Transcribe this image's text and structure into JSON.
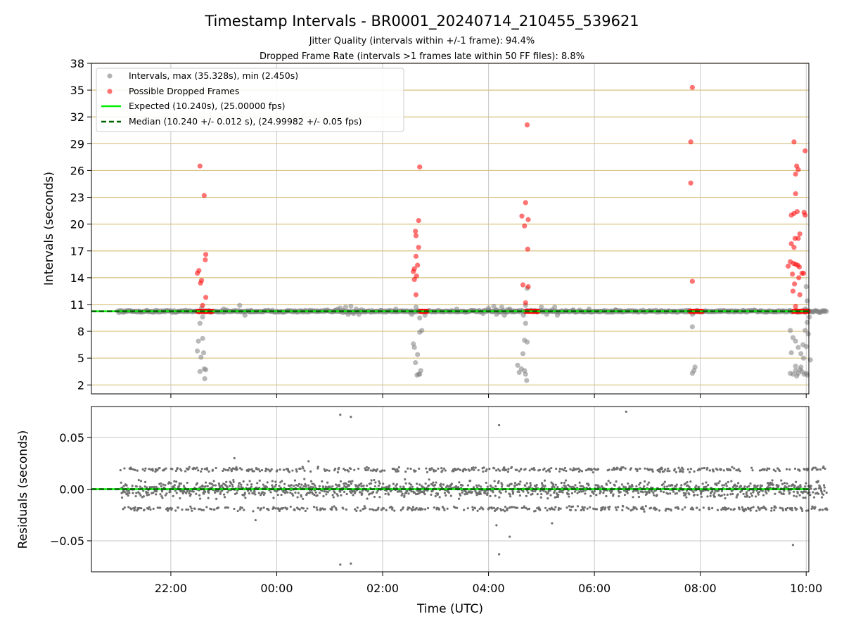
{
  "chart_data": [
    {
      "type": "scatter",
      "title": "Timestamp Intervals - BR0001_20240714_210455_539621",
      "subtitle_lines": [
        "Jitter Quality (intervals within +/-1 frame): 94.4%",
        "Dropped Frame Rate (intervals >1 frames late within 50 FF files): 8.8%"
      ],
      "ylabel": "Intervals (seconds)",
      "ylim": [
        1,
        38
      ],
      "yticks": [
        2,
        5,
        8,
        11,
        14,
        17,
        20,
        23,
        26,
        29,
        32,
        35,
        38
      ],
      "ytick_labels": [
        "2",
        "5",
        "8",
        "11",
        "14",
        "17",
        "20",
        "23",
        "26",
        "29",
        "32",
        "35",
        "38"
      ],
      "xlim_hours": [
        20.5,
        34.05
      ],
      "xticks_hours": [
        22,
        24,
        26,
        28,
        30,
        32,
        34
      ],
      "x_gridlines": true,
      "y_gridlines_color": "#d8c07f",
      "legend_position": "upper-left",
      "legend": [
        {
          "label": "Intervals, max (35.328s), min (2.450s)",
          "marker": "circle",
          "color": "#808080"
        },
        {
          "label": "Possible Dropped Frames",
          "marker": "circle",
          "color": "#ff0000"
        },
        {
          "label": "Expected (10.240s), (25.00000 fps)",
          "marker": "line-solid",
          "color": "#00ee00"
        },
        {
          "label": "Median (10.240 +/- 0.012 s), (24.99982 +/- 0.05 fps)",
          "marker": "line-dashed",
          "color": "#006400"
        }
      ],
      "expected_interval": 10.24,
      "median_interval": 10.24,
      "baseline_span_hours": [
        21.0,
        34.4
      ],
      "dense_red_segments": [
        [
          22.5,
          22.8
        ],
        [
          26.7,
          26.85
        ],
        [
          28.7,
          28.95
        ],
        [
          31.8,
          32.05
        ],
        [
          33.75,
          34.05
        ]
      ],
      "series": [
        {
          "name": "Intervals",
          "color": "#808080",
          "points": [
            [
              22.55,
              8.9
            ],
            [
              22.52,
              6.9
            ],
            [
              22.6,
              7.2
            ],
            [
              22.5,
              5.8
            ],
            [
              22.62,
              5.6
            ],
            [
              22.57,
              5.1
            ],
            [
              22.55,
              3.5
            ],
            [
              22.63,
              3.8
            ],
            [
              22.66,
              3.7
            ],
            [
              22.64,
              2.7
            ],
            [
              22.6,
              9.6
            ],
            [
              22.58,
              10.6
            ],
            [
              23.0,
              10.5
            ],
            [
              23.3,
              10.9
            ],
            [
              23.4,
              9.8
            ],
            [
              23.5,
              10.3
            ],
            [
              25.1,
              10.3
            ],
            [
              25.15,
              10.5
            ],
            [
              25.2,
              10.6
            ],
            [
              25.25,
              10.1
            ],
            [
              25.3,
              10.7
            ],
            [
              25.35,
              9.9
            ],
            [
              25.4,
              10.8
            ],
            [
              25.45,
              10.0
            ],
            [
              25.5,
              10.5
            ],
            [
              25.55,
              9.9
            ],
            [
              25.6,
              10.4
            ],
            [
              26.25,
              10.5
            ],
            [
              26.55,
              9.9
            ],
            [
              26.58,
              6.6
            ],
            [
              26.6,
              6.2
            ],
            [
              26.62,
              4.5
            ],
            [
              26.65,
              3.1
            ],
            [
              26.68,
              3.2
            ],
            [
              26.7,
              3.2
            ],
            [
              26.72,
              3.6
            ],
            [
              26.66,
              5.4
            ],
            [
              26.7,
              7.9
            ],
            [
              26.74,
              8.1
            ],
            [
              26.7,
              9.5
            ],
            [
              26.63,
              10.7
            ],
            [
              26.8,
              9.8
            ],
            [
              27.4,
              10.5
            ],
            [
              27.9,
              10.0
            ],
            [
              28.0,
              10.6
            ],
            [
              28.1,
              10.8
            ],
            [
              28.15,
              9.9
            ],
            [
              28.2,
              10.2
            ],
            [
              28.25,
              10.7
            ],
            [
              28.3,
              9.8
            ],
            [
              28.35,
              10.4
            ],
            [
              28.4,
              10.5
            ],
            [
              28.5,
              10.2
            ],
            [
              28.55,
              4.2
            ],
            [
              28.58,
              3.4
            ],
            [
              28.62,
              3.8
            ],
            [
              28.68,
              3.6
            ],
            [
              28.7,
              3.2
            ],
            [
              28.72,
              2.5
            ],
            [
              28.65,
              5.5
            ],
            [
              28.68,
              7.0
            ],
            [
              28.73,
              6.8
            ],
            [
              28.7,
              8.9
            ],
            [
              28.66,
              9.8
            ],
            [
              28.73,
              12.8
            ],
            [
              28.7,
              10.9
            ],
            [
              29.0,
              10.7
            ],
            [
              29.1,
              9.9
            ],
            [
              29.2,
              10.4
            ],
            [
              29.25,
              10.7
            ],
            [
              29.3,
              9.8
            ],
            [
              29.6,
              10.4
            ],
            [
              29.9,
              10.5
            ],
            [
              30.1,
              10.2
            ],
            [
              30.4,
              10.4
            ],
            [
              30.5,
              10.3
            ],
            [
              31.85,
              9.9
            ],
            [
              31.85,
              8.5
            ],
            [
              31.9,
              4.0
            ],
            [
              31.88,
              3.6
            ],
            [
              31.85,
              3.3
            ],
            [
              33.7,
              8.1
            ],
            [
              33.75,
              7.3
            ],
            [
              33.8,
              6.9
            ],
            [
              33.72,
              5.6
            ],
            [
              33.85,
              6.2
            ],
            [
              33.8,
              4.1
            ],
            [
              33.7,
              3.3
            ],
            [
              33.75,
              3.2
            ],
            [
              33.8,
              3.6
            ],
            [
              33.85,
              3.3
            ],
            [
              33.88,
              3.7
            ],
            [
              33.92,
              3.5
            ],
            [
              33.96,
              3.2
            ],
            [
              34.0,
              3.3
            ],
            [
              34.02,
              3.1
            ],
            [
              33.82,
              3.0
            ],
            [
              33.9,
              4.0
            ],
            [
              33.95,
              5.0
            ],
            [
              34.0,
              6.3
            ],
            [
              33.94,
              6.5
            ],
            [
              34.04,
              7.7
            ],
            [
              33.98,
              8.1
            ],
            [
              34.02,
              9.0
            ],
            [
              34.06,
              9.6
            ],
            [
              33.98,
              10.5
            ],
            [
              34.02,
              11.4
            ],
            [
              34.0,
              13.0
            ],
            [
              33.9,
              5.5
            ],
            [
              34.08,
              4.8
            ]
          ]
        },
        {
          "name": "Possible Dropped Frames",
          "color": "#ff0000",
          "points": [
            [
              22.55,
              26.5
            ],
            [
              22.63,
              23.2
            ],
            [
              22.66,
              16.6
            ],
            [
              22.65,
              16.0
            ],
            [
              22.53,
              14.8
            ],
            [
              22.5,
              14.5
            ],
            [
              22.58,
              13.7
            ],
            [
              22.56,
              13.4
            ],
            [
              22.66,
              11.8
            ],
            [
              22.6,
              10.9
            ],
            [
              26.7,
              26.4
            ],
            [
              26.68,
              20.4
            ],
            [
              26.62,
              19.2
            ],
            [
              26.63,
              18.7
            ],
            [
              26.68,
              17.4
            ],
            [
              26.63,
              16.4
            ],
            [
              26.66,
              15.4
            ],
            [
              26.6,
              15.0
            ],
            [
              26.58,
              14.7
            ],
            [
              26.64,
              14.2
            ],
            [
              26.6,
              13.8
            ],
            [
              26.63,
              12.1
            ],
            [
              28.73,
              31.1
            ],
            [
              28.7,
              22.4
            ],
            [
              28.63,
              20.9
            ],
            [
              28.75,
              20.5
            ],
            [
              28.68,
              19.8
            ],
            [
              28.74,
              17.2
            ],
            [
              28.65,
              13.2
            ],
            [
              28.75,
              13.0
            ],
            [
              28.7,
              11.2
            ],
            [
              31.85,
              35.3
            ],
            [
              31.82,
              29.2
            ],
            [
              31.82,
              24.6
            ],
            [
              31.85,
              13.6
            ],
            [
              33.77,
              29.2
            ],
            [
              33.82,
              26.5
            ],
            [
              33.85,
              26.1
            ],
            [
              33.8,
              25.6
            ],
            [
              33.8,
              23.4
            ],
            [
              33.98,
              28.2
            ],
            [
              33.72,
              21.0
            ],
            [
              33.77,
              21.2
            ],
            [
              33.96,
              21.3
            ],
            [
              33.98,
              21.0
            ],
            [
              33.83,
              21.4
            ],
            [
              33.88,
              18.9
            ],
            [
              33.85,
              18.4
            ],
            [
              33.79,
              18.4
            ],
            [
              33.72,
              17.8
            ],
            [
              33.77,
              17.4
            ],
            [
              33.66,
              15.3
            ],
            [
              33.7,
              15.8
            ],
            [
              33.76,
              15.6
            ],
            [
              33.8,
              15.5
            ],
            [
              33.84,
              15.4
            ],
            [
              33.87,
              15.2
            ],
            [
              33.74,
              14.4
            ],
            [
              33.92,
              14.5
            ],
            [
              33.95,
              14.5
            ],
            [
              33.86,
              14.0
            ],
            [
              33.78,
              13.3
            ],
            [
              33.75,
              12.5
            ],
            [
              33.88,
              12.1
            ],
            [
              33.8,
              10.8
            ]
          ]
        }
      ]
    },
    {
      "type": "scatter",
      "ylabel": "Residuals (seconds)",
      "xlabel": "Time (UTC)",
      "ylim": [
        -0.08,
        0.08
      ],
      "yticks": [
        -0.05,
        0.0,
        0.05
      ],
      "ytick_labels": [
        "−0.05",
        "0.00",
        "0.05"
      ],
      "xlim_hours": [
        20.5,
        34.05
      ],
      "xticks_hours": [
        22,
        24,
        26,
        28,
        30,
        32,
        34
      ],
      "xtick_labels": [
        "22:00",
        "00:00",
        "02:00",
        "04:00",
        "06:00",
        "08:00",
        "10:00"
      ],
      "grid": true,
      "point_color": "#707070",
      "data_span_hours": [
        21.05,
        34.4
      ],
      "bands": [
        {
          "center": 0.0,
          "spread": 0.012,
          "fraction": 0.62
        },
        {
          "center": 0.019,
          "spread": 0.003,
          "fraction": 0.19
        },
        {
          "center": -0.019,
          "spread": 0.003,
          "fraction": 0.19
        }
      ],
      "outliers": [
        [
          25.2,
          0.072
        ],
        [
          25.4,
          0.07
        ],
        [
          28.2,
          0.062
        ],
        [
          30.6,
          0.075
        ],
        [
          28.15,
          -0.035
        ],
        [
          28.4,
          -0.046
        ],
        [
          28.2,
          -0.063
        ],
        [
          25.2,
          -0.073
        ],
        [
          25.4,
          -0.072
        ],
        [
          33.75,
          -0.054
        ],
        [
          23.6,
          -0.03
        ],
        [
          23.2,
          0.03
        ],
        [
          24.6,
          0.027
        ],
        [
          29.2,
          -0.033
        ]
      ],
      "reference_lines": [
        {
          "label": "Expected",
          "value": 0.0,
          "color": "#00ee00",
          "style": "solid"
        },
        {
          "label": "Median",
          "value": 0.0,
          "color": "#006400",
          "style": "dashed"
        }
      ]
    }
  ]
}
